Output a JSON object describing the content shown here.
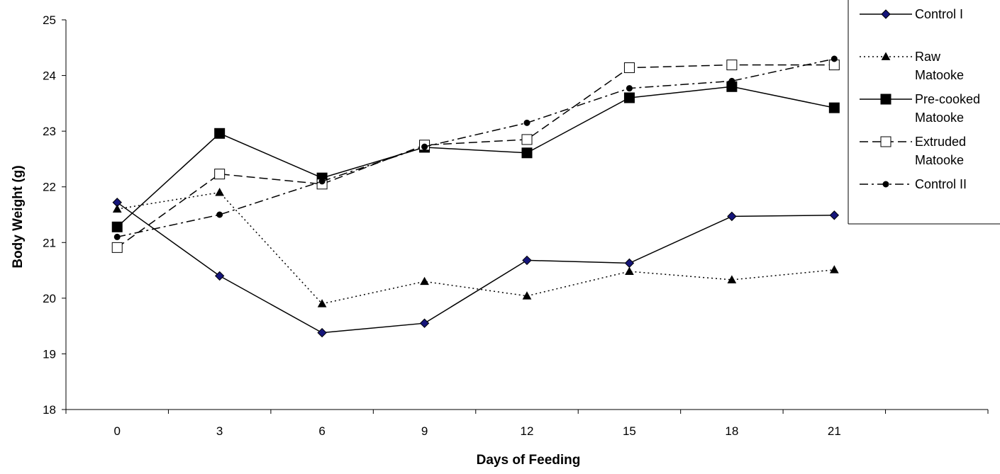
{
  "chart_data": {
    "type": "line",
    "title": "",
    "xlabel": "Days of Feeding",
    "ylabel": "Body Weight (g)",
    "x": [
      0,
      3,
      6,
      9,
      12,
      15,
      18,
      21
    ],
    "ylim": [
      18,
      25
    ],
    "yticks": [
      18,
      19,
      20,
      21,
      22,
      23,
      24,
      25
    ],
    "grid": false,
    "legend_position": "right",
    "series": [
      {
        "name": "Control I",
        "legend_lines": [
          "Control I"
        ],
        "marker": "diamond",
        "line_style": "solid",
        "values": [
          21.72,
          20.4,
          19.38,
          19.55,
          20.68,
          20.63,
          21.47,
          21.49
        ]
      },
      {
        "name": "Raw Matooke",
        "legend_lines": [
          "Raw",
          "Matooke"
        ],
        "marker": "triangle",
        "line_style": "dotted",
        "values": [
          21.6,
          21.9,
          19.9,
          20.3,
          20.04,
          20.48,
          20.33,
          20.51
        ]
      },
      {
        "name": "Pre-cooked Matooke",
        "legend_lines": [
          "Pre-cooked",
          "Matooke"
        ],
        "marker": "square",
        "line_style": "solid",
        "values": [
          21.28,
          22.96,
          22.16,
          22.71,
          22.61,
          23.6,
          23.8,
          23.42
        ]
      },
      {
        "name": "Extruded Matooke",
        "legend_lines": [
          "Extruded",
          "Matooke"
        ],
        "marker": "open-square",
        "line_style": "dashed",
        "values": [
          20.91,
          22.23,
          22.05,
          22.75,
          22.85,
          24.14,
          24.19,
          24.19
        ]
      },
      {
        "name": "Control II",
        "legend_lines": [
          "Control II"
        ],
        "marker": "circle",
        "line_style": "dash-dot",
        "values": [
          21.1,
          21.5,
          22.1,
          22.72,
          23.15,
          23.77,
          23.9,
          24.3
        ]
      }
    ]
  }
}
